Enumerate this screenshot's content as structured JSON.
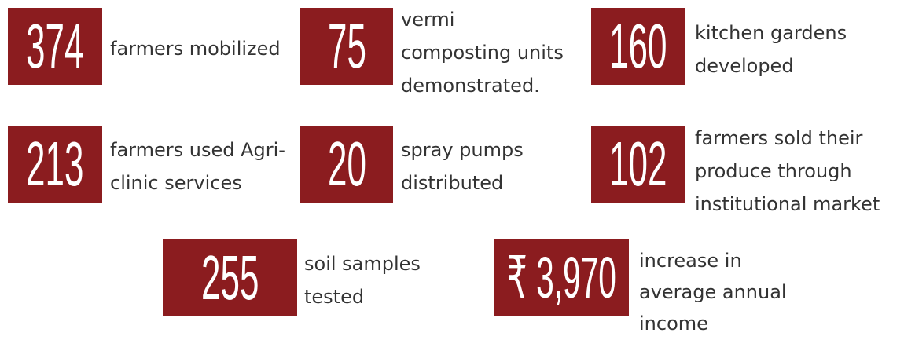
{
  "stats": [
    {
      "value": "374",
      "lines": [
        "farmers mobilized"
      ]
    },
    {
      "value": "75",
      "lines": [
        "vermi",
        "composting units",
        "demonstrated."
      ]
    },
    {
      "value": "160",
      "lines": [
        "kitchen gardens",
        "developed"
      ]
    },
    {
      "value": "213",
      "lines": [
        "farmers used Agri-",
        "clinic services"
      ]
    },
    {
      "value": "20",
      "lines": [
        "spray pumps",
        "distributed"
      ]
    },
    {
      "value": "102",
      "lines": [
        "farmers sold their",
        "produce through",
        "institutional market"
      ]
    },
    {
      "value": "255",
      "lines": [
        "soil samples",
        "tested"
      ]
    },
    {
      "value": "₹ 3,970",
      "lines": [
        "increase in",
        "average annual",
        "income"
      ]
    }
  ]
}
